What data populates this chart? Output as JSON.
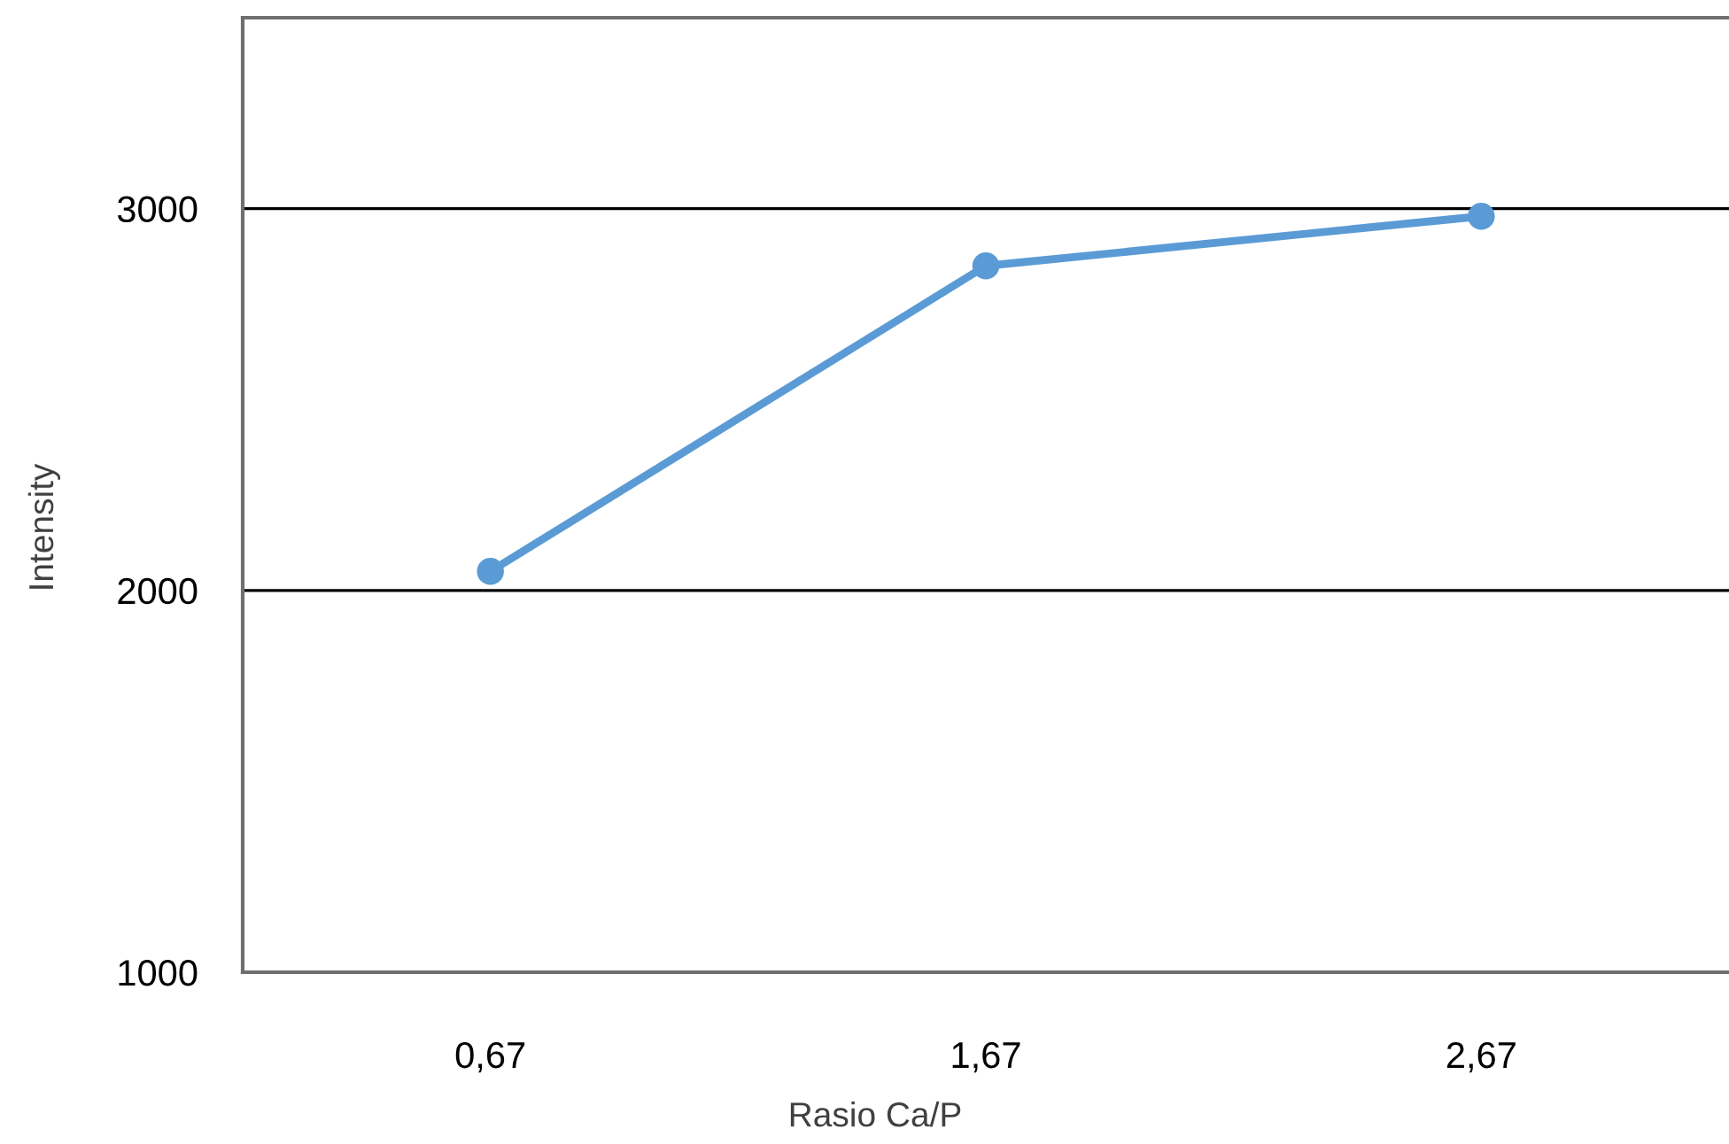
{
  "chart_data": {
    "type": "line",
    "xlabel": "Rasio Ca/P",
    "ylabel": "Intensity",
    "categories": [
      "0,67",
      "1,67",
      "2,67"
    ],
    "series": [
      {
        "color": "#5b9bd5",
        "values": [
          2050,
          2850,
          2980
        ]
      }
    ],
    "ylim": [
      1000,
      3500
    ],
    "yticks": [
      1000,
      2000,
      3000
    ],
    "grid": "y",
    "marker": "circle",
    "line_style": "solid"
  }
}
